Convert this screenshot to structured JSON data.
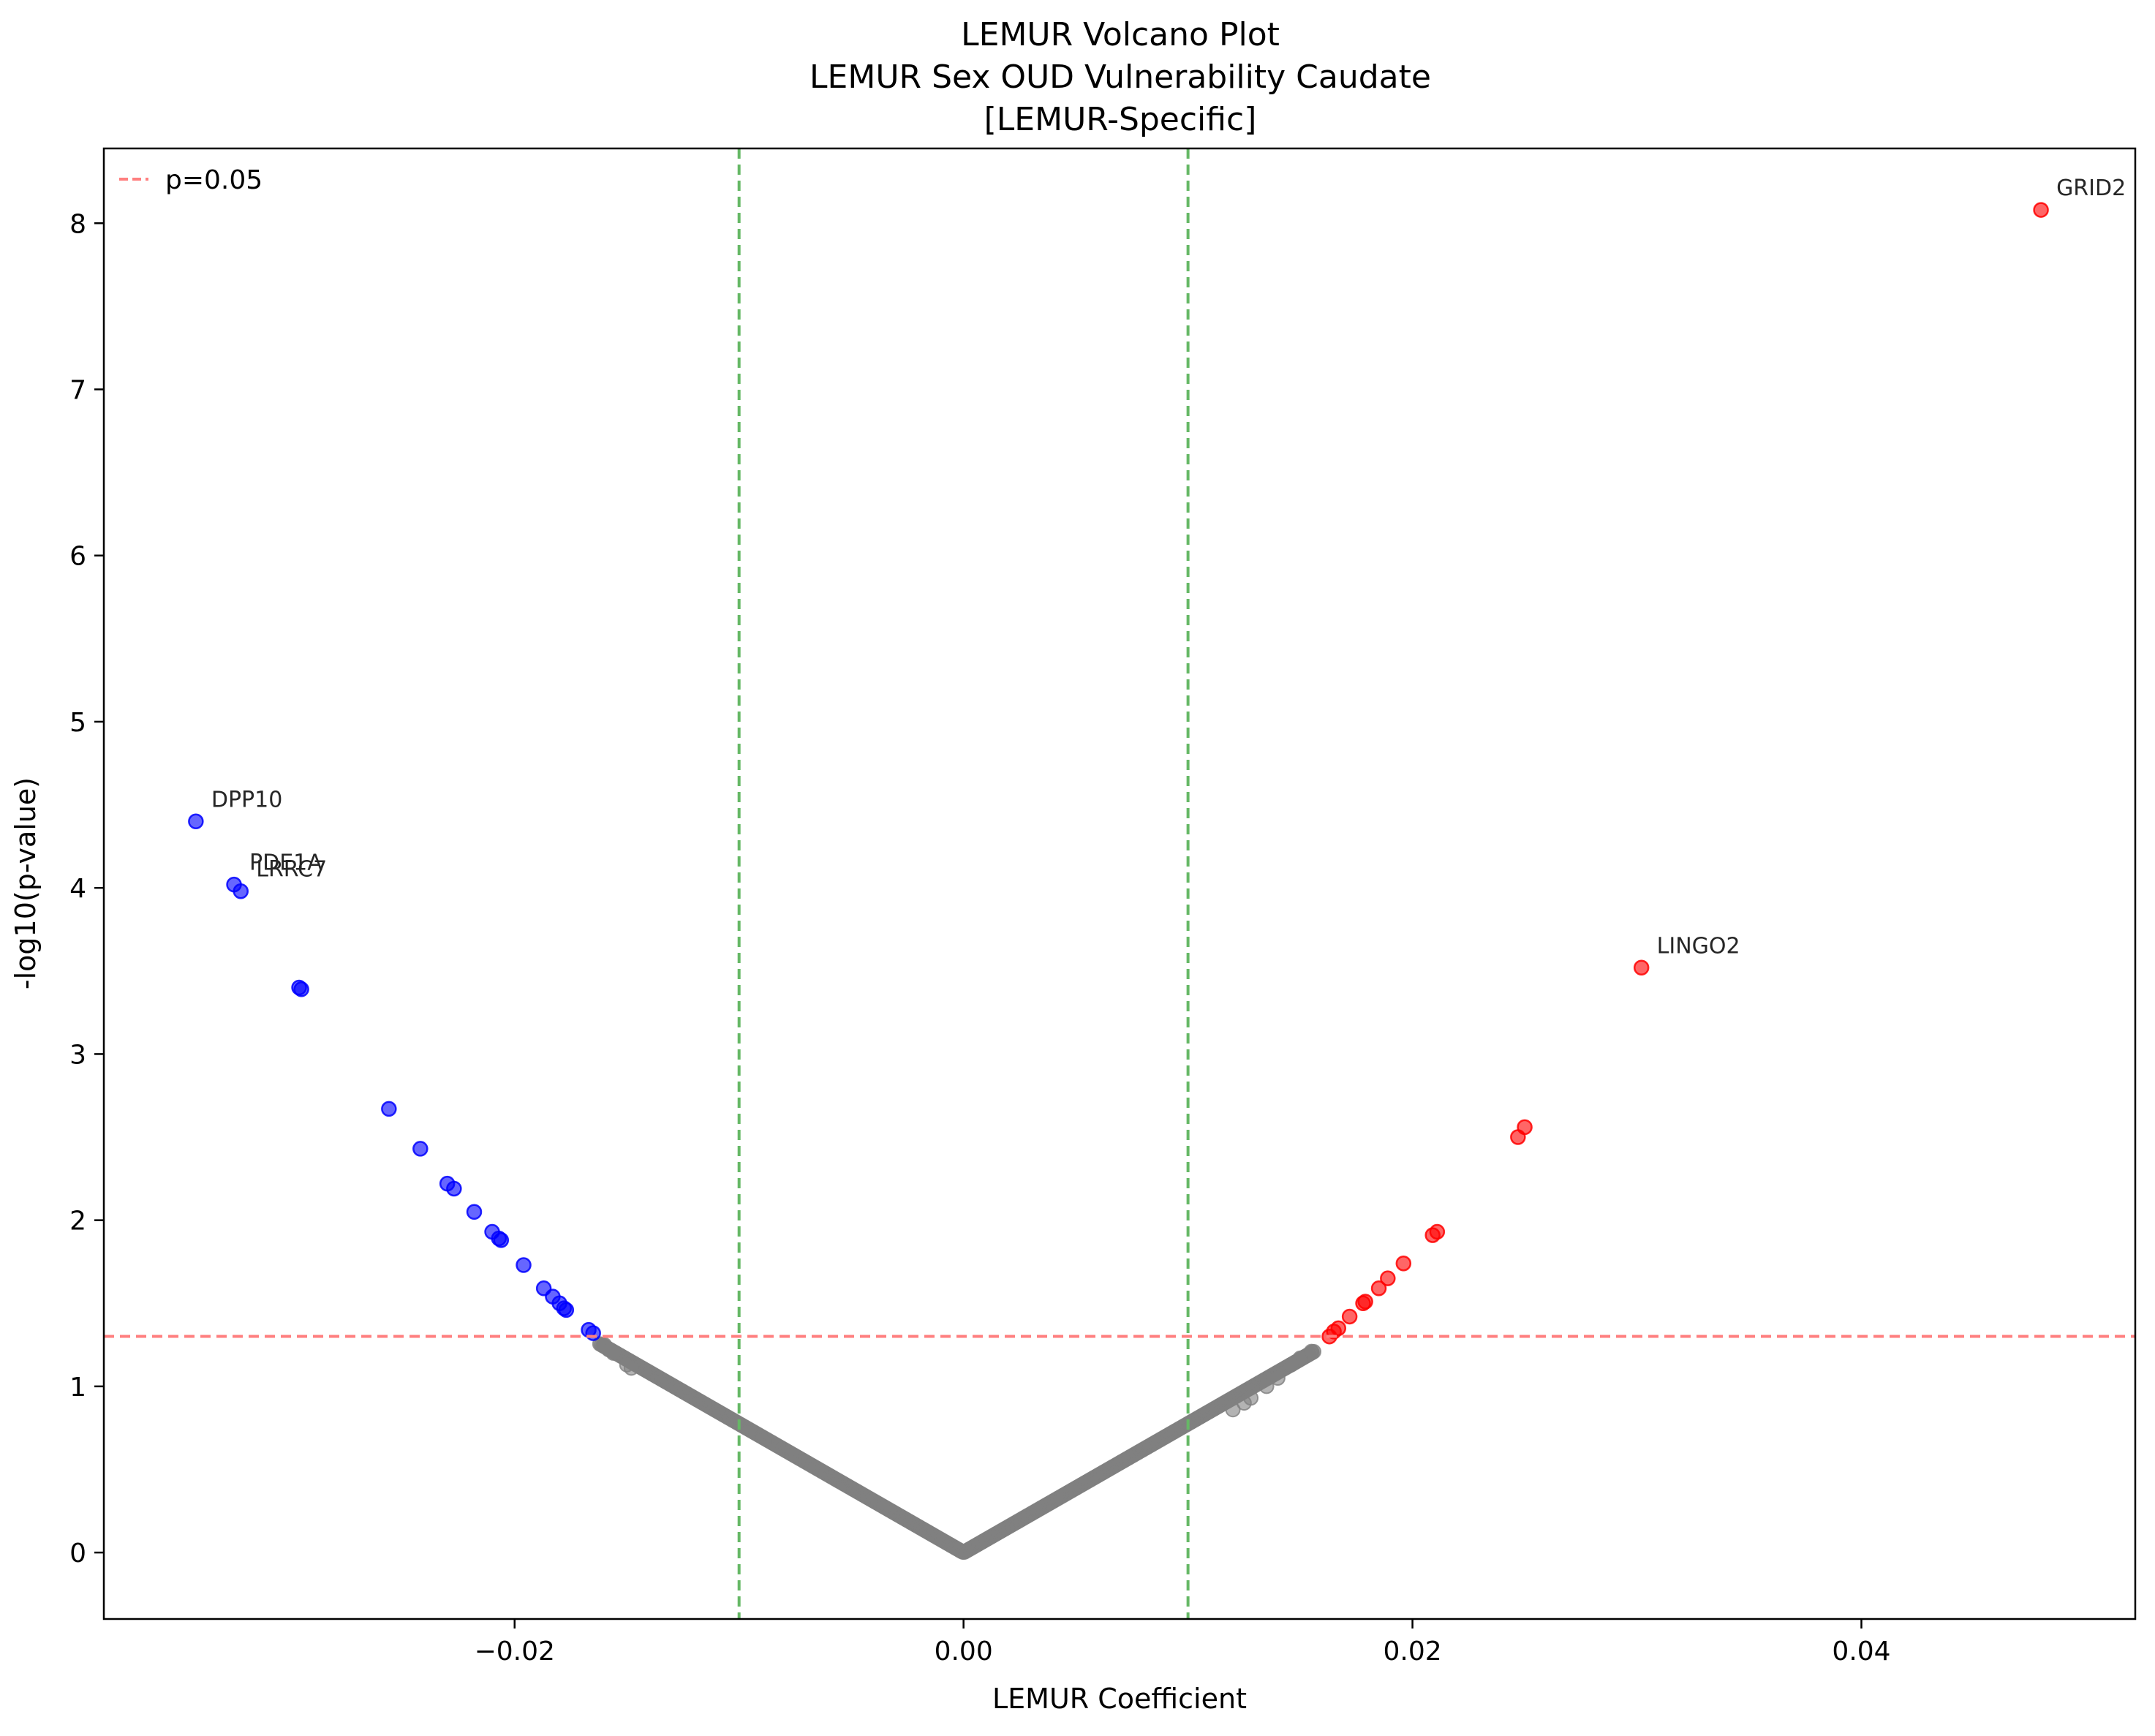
{
  "chart_data": {
    "type": "scatter",
    "title": [
      "LEMUR Volcano Plot",
      "LEMUR Sex OUD Vulnerability Caudate",
      "[LEMUR-Specific]"
    ],
    "xlabel": "LEMUR Coefficient",
    "ylabel": "-log10(p-value)",
    "xlim": [
      -0.0383,
      0.0522
    ],
    "ylim": [
      -0.4,
      8.45
    ],
    "xticks": [
      -0.02,
      0.0,
      0.02,
      0.04
    ],
    "xtick_labels": [
      "−0.02",
      "0.00",
      "0.02",
      "0.04"
    ],
    "yticks": [
      0,
      1,
      2,
      3,
      4,
      5,
      6,
      7,
      8
    ],
    "ytick_labels": [
      "0",
      "1",
      "2",
      "3",
      "4",
      "5",
      "6",
      "7",
      "8"
    ],
    "grid": false,
    "legend": {
      "placement": "top-left",
      "entries": [
        {
          "label": "p=0.05",
          "color": "#ff7f7f",
          "style": "dashed"
        }
      ]
    },
    "reference_lines": [
      {
        "orientation": "horizontal",
        "value": 1.301,
        "color": "#ff7f7f",
        "style": "dashed",
        "legend": "p=0.05"
      },
      {
        "orientation": "vertical",
        "value": -0.01,
        "color": "#66b866",
        "style": "dashed"
      },
      {
        "orientation": "vertical",
        "value": 0.01,
        "color": "#66b866",
        "style": "dashed"
      }
    ],
    "series": [
      {
        "color": "#0000ff",
        "role": "down-regulated significant",
        "points": [
          [
            -0.0342,
            4.4
          ],
          [
            -0.0325,
            4.02
          ],
          [
            -0.0322,
            3.98
          ],
          [
            -0.0296,
            3.4
          ],
          [
            -0.0295,
            3.39
          ],
          [
            -0.0256,
            2.67
          ],
          [
            -0.0242,
            2.43
          ],
          [
            -0.023,
            2.22
          ],
          [
            -0.0227,
            2.19
          ],
          [
            -0.0218,
            2.05
          ],
          [
            -0.021,
            1.93
          ],
          [
            -0.0207,
            1.89
          ],
          [
            -0.0206,
            1.88
          ],
          [
            -0.0196,
            1.73
          ],
          [
            -0.0187,
            1.59
          ],
          [
            -0.0183,
            1.54
          ],
          [
            -0.018,
            1.5
          ],
          [
            -0.0178,
            1.47
          ],
          [
            -0.0177,
            1.46
          ],
          [
            -0.0167,
            1.34
          ],
          [
            -0.0165,
            1.32
          ]
        ]
      },
      {
        "color": "#ff0000",
        "role": "up-regulated significant",
        "points": [
          [
            0.048,
            8.08
          ],
          [
            0.0302,
            3.52
          ],
          [
            0.025,
            2.56
          ],
          [
            0.0247,
            2.5
          ],
          [
            0.0211,
            1.93
          ],
          [
            0.0209,
            1.91
          ],
          [
            0.0196,
            1.74
          ],
          [
            0.0189,
            1.65
          ],
          [
            0.0185,
            1.59
          ],
          [
            0.0179,
            1.51
          ],
          [
            0.0178,
            1.5
          ],
          [
            0.0172,
            1.42
          ],
          [
            0.0167,
            1.35
          ],
          [
            0.0165,
            1.33
          ],
          [
            0.0163,
            1.3
          ]
        ]
      },
      {
        "color": "#808080",
        "role": "not significant",
        "curve": {
          "x_from": -0.0162,
          "x_to": 0.0156,
          "y_per_abs_x": 77.5
        },
        "extra_points": [
          [
            -0.016,
            1.25
          ],
          [
            -0.0158,
            1.22
          ],
          [
            -0.0156,
            1.2
          ],
          [
            -0.015,
            1.13
          ],
          [
            -0.0148,
            1.11
          ],
          [
            0.0155,
            1.21
          ],
          [
            0.015,
            1.17
          ],
          [
            0.0146,
            1.13
          ],
          [
            0.014,
            1.05
          ],
          [
            0.0135,
            1.0
          ],
          [
            0.0128,
            0.93
          ],
          [
            0.0125,
            0.9
          ],
          [
            0.012,
            0.86
          ]
        ]
      }
    ],
    "annotations": [
      {
        "text": "GRID2",
        "x": 0.048,
        "y": 8.08
      },
      {
        "text": "DPP10",
        "x": -0.0342,
        "y": 4.4
      },
      {
        "text": "PDE1A",
        "x": -0.0325,
        "y": 4.02
      },
      {
        "text": "LRRC7",
        "x": -0.0322,
        "y": 3.98
      },
      {
        "text": "LINGO2",
        "x": 0.0302,
        "y": 3.52
      }
    ]
  }
}
